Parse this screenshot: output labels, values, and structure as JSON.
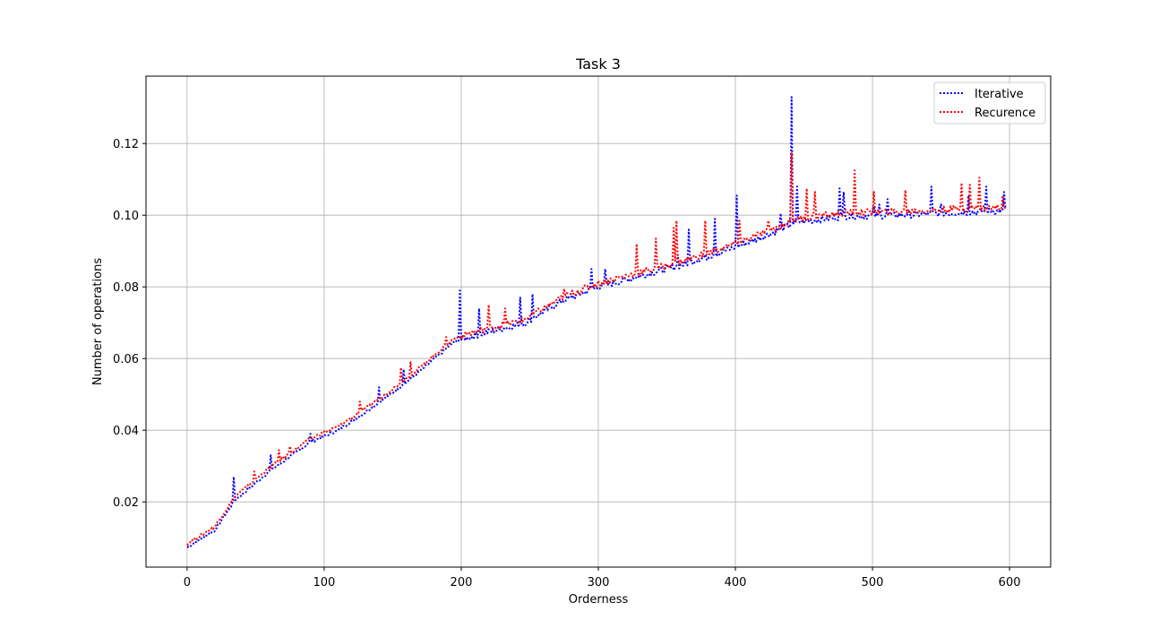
{
  "chart_data": {
    "type": "line",
    "title": "Task 3",
    "xlabel": "Orderness",
    "ylabel": "Number of operations",
    "xlim": [
      -30,
      630
    ],
    "ylim": [
      0.0018,
      0.1388
    ],
    "xticks": [
      0,
      100,
      200,
      300,
      400,
      500,
      600
    ],
    "yticks": [
      0.02,
      0.04,
      0.06,
      0.08,
      0.1,
      0.12
    ],
    "ytick_labels": [
      "0.02",
      "0.04",
      "0.06",
      "0.08",
      "0.10",
      "0.12"
    ],
    "grid": true,
    "legend_position": "top-right",
    "base_curve": {
      "x": [
        0,
        20,
        35,
        60,
        90,
        110,
        130,
        150,
        170,
        195,
        215,
        245,
        275,
        300,
        330,
        360,
        390,
        420,
        445,
        480,
        520,
        560,
        600
      ],
      "y": [
        0.0078,
        0.0125,
        0.021,
        0.029,
        0.0372,
        0.0405,
        0.0455,
        0.051,
        0.057,
        0.0652,
        0.0675,
        0.0702,
        0.0768,
        0.0805,
        0.0835,
        0.0865,
        0.0902,
        0.0945,
        0.0985,
        0.1002,
        0.1005,
        0.1012,
        0.1018
      ]
    },
    "series": [
      {
        "name": "Iterative",
        "color": "#0000ff",
        "offset": -0.0005,
        "spikes": [
          [
            34,
            0.027
          ],
          [
            61,
            0.033
          ],
          [
            90,
            0.039
          ],
          [
            140,
            0.052
          ],
          [
            158,
            0.057
          ],
          [
            199,
            0.079
          ],
          [
            213,
            0.074
          ],
          [
            243,
            0.077
          ],
          [
            252,
            0.078
          ],
          [
            295,
            0.085
          ],
          [
            305,
            0.085
          ],
          [
            358,
            0.089
          ],
          [
            366,
            0.096
          ],
          [
            385,
            0.099
          ],
          [
            401,
            0.1055
          ],
          [
            433,
            0.1005
          ],
          [
            441,
            0.133
          ],
          [
            445,
            0.108
          ],
          [
            476,
            0.1075
          ],
          [
            479,
            0.1065
          ],
          [
            501,
            0.1025
          ],
          [
            505,
            0.103
          ],
          [
            511,
            0.1045
          ],
          [
            543,
            0.108
          ],
          [
            550,
            0.103
          ],
          [
            570,
            0.1055
          ],
          [
            583,
            0.108
          ],
          [
            596,
            0.1065
          ]
        ]
      },
      {
        "name": "Recurence",
        "color": "#ff0000",
        "offset": 0.0005,
        "spikes": [
          [
            49,
            0.0285
          ],
          [
            67,
            0.0345
          ],
          [
            75,
            0.0355
          ],
          [
            126,
            0.048
          ],
          [
            156,
            0.0575
          ],
          [
            163,
            0.059
          ],
          [
            189,
            0.066
          ],
          [
            220,
            0.075
          ],
          [
            232,
            0.074
          ],
          [
            275,
            0.0795
          ],
          [
            328,
            0.092
          ],
          [
            342,
            0.0935
          ],
          [
            355,
            0.0965
          ],
          [
            357,
            0.0985
          ],
          [
            378,
            0.0985
          ],
          [
            403,
            0.0985
          ],
          [
            424,
            0.0985
          ],
          [
            441,
            0.1175
          ],
          [
            452,
            0.1075
          ],
          [
            458,
            0.1065
          ],
          [
            487,
            0.1125
          ],
          [
            501,
            0.1065
          ],
          [
            524,
            0.107
          ],
          [
            565,
            0.109
          ],
          [
            571,
            0.1085
          ],
          [
            578,
            0.1105
          ],
          [
            595,
            0.1055
          ]
        ]
      }
    ]
  }
}
